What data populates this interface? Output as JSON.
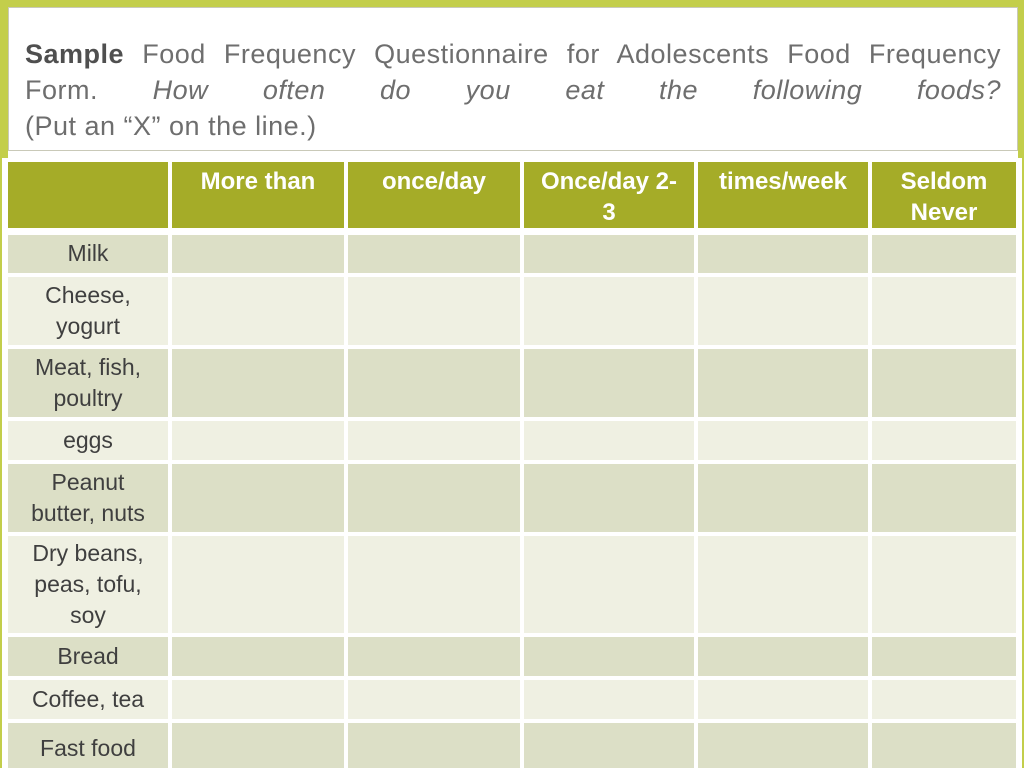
{
  "slide": {
    "title": {
      "line1_bold": "Sample",
      "line1_rest": "Food Frequency Questionnaire for Adolescents Food Frequency",
      "line2_plain": "Form.",
      "line2_italic": "How often do you eat the following foods?",
      "line3": "(Put an “X” on the line.)"
    },
    "table": {
      "header": [
        "",
        "More than",
        "once/day",
        "Once/day 2-3",
        "times/week",
        "Seldom Never"
      ],
      "rows": [
        {
          "label": "Milk",
          "cells": [
            "",
            "",
            "",
            "",
            ""
          ]
        },
        {
          "label": "Cheese, yogurt",
          "cells": [
            "",
            "",
            "",
            "",
            ""
          ]
        },
        {
          "label": "Meat, fish, poultry",
          "cells": [
            "",
            "",
            "",
            "",
            ""
          ]
        },
        {
          "label": "eggs",
          "cells": [
            "",
            "",
            "",
            "",
            ""
          ]
        },
        {
          "label": "Peanut butter, nuts",
          "cells": [
            "",
            "",
            "",
            "",
            ""
          ]
        },
        {
          "label": "Dry beans, peas, tofu, soy",
          "cells": [
            "",
            "",
            "",
            "",
            ""
          ]
        },
        {
          "label": "Bread",
          "cells": [
            "",
            "",
            "",
            "",
            ""
          ]
        },
        {
          "label": "Coffee, tea",
          "cells": [
            "",
            "",
            "",
            "",
            ""
          ]
        },
        {
          "label": "Fast food",
          "cells": [
            "",
            "",
            "",
            "",
            ""
          ]
        }
      ]
    },
    "colors": {
      "frame": "#c3ce4b",
      "header_bg": "#a5ac28",
      "band_dark": "#dcdfc6",
      "band_light": "#eff0e2",
      "label_text": "#3f3f3f",
      "title_text": "#6e6e6e",
      "title_bold": "#4f4f4f",
      "box_border": "#c9c9b8"
    }
  }
}
